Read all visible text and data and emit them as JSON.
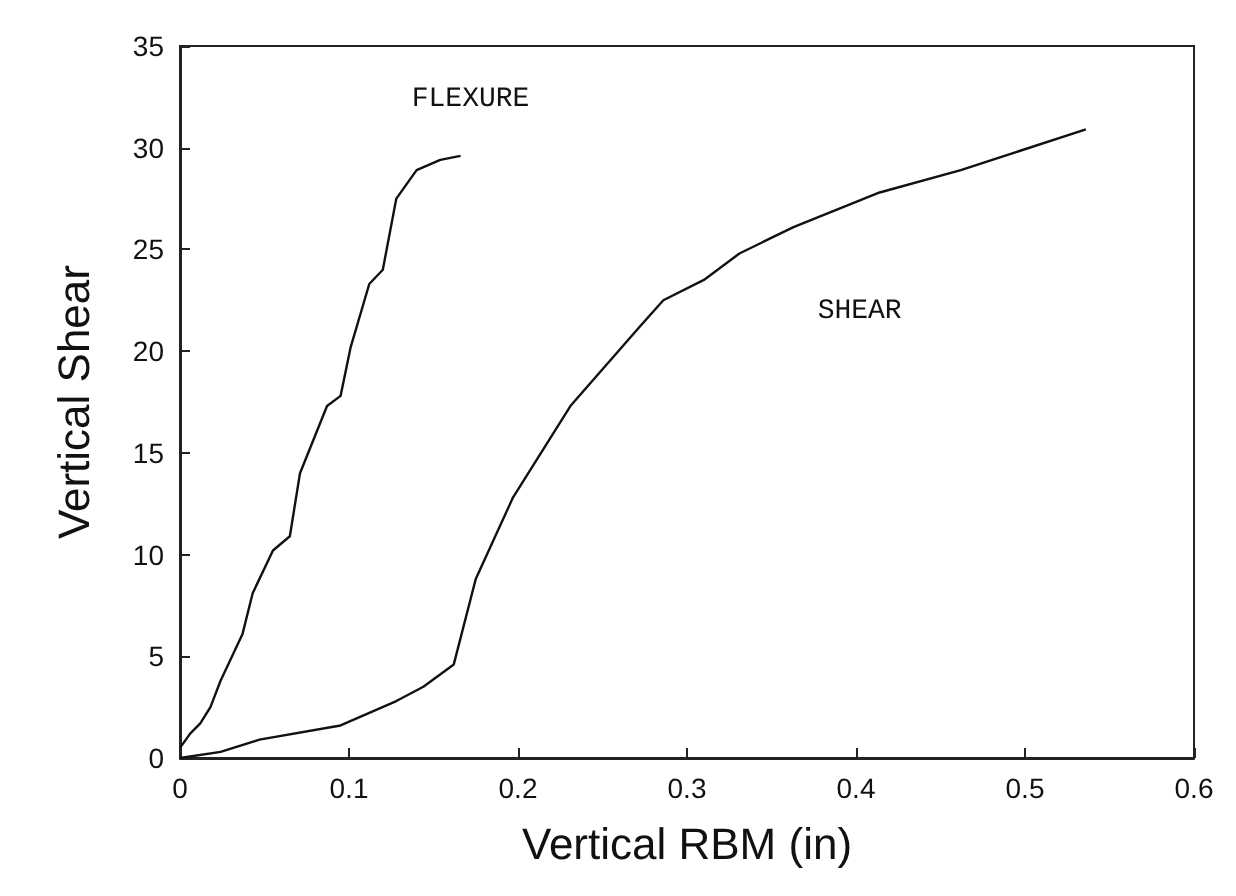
{
  "chart_data": {
    "type": "line",
    "xlabel": "Vertical RBM (in)",
    "ylabel": "Vertical Shear",
    "xlim": [
      0,
      0.6
    ],
    "xticks": [
      0,
      0.1,
      0.2,
      0.3,
      0.4,
      0.5,
      0.6
    ],
    "ylim": [
      0,
      35
    ],
    "yticks": [
      0,
      5,
      10,
      15,
      20,
      25,
      30,
      35
    ],
    "grid": false,
    "marker": "none",
    "line_style": "solid",
    "series": [
      {
        "name": "FLEXURE",
        "color": "#111111",
        "x": [
          0,
          0.006,
          0.012,
          0.018,
          0.024,
          0.037,
          0.043,
          0.055,
          0.065,
          0.071,
          0.087,
          0.095,
          0.101,
          0.112,
          0.12,
          0.128,
          0.14,
          0.154,
          0.166
        ],
        "values": [
          0.5,
          1.2,
          1.7,
          2.5,
          3.8,
          6.1,
          8.1,
          10.2,
          10.9,
          14.0,
          17.3,
          17.8,
          20.2,
          23.3,
          24.0,
          27.5,
          28.9,
          29.4,
          29.6
        ]
      },
      {
        "name": "SHEAR",
        "color": "#111111",
        "x": [
          0,
          0.024,
          0.047,
          0.095,
          0.128,
          0.144,
          0.162,
          0.175,
          0.197,
          0.231,
          0.272,
          0.286,
          0.31,
          0.331,
          0.363,
          0.414,
          0.462,
          0.536
        ],
        "values": [
          0,
          0.3,
          0.9,
          1.6,
          2.8,
          3.5,
          4.6,
          8.8,
          12.8,
          17.3,
          21.2,
          22.5,
          23.5,
          24.8,
          26.1,
          27.8,
          28.9,
          30.9
        ]
      }
    ]
  }
}
